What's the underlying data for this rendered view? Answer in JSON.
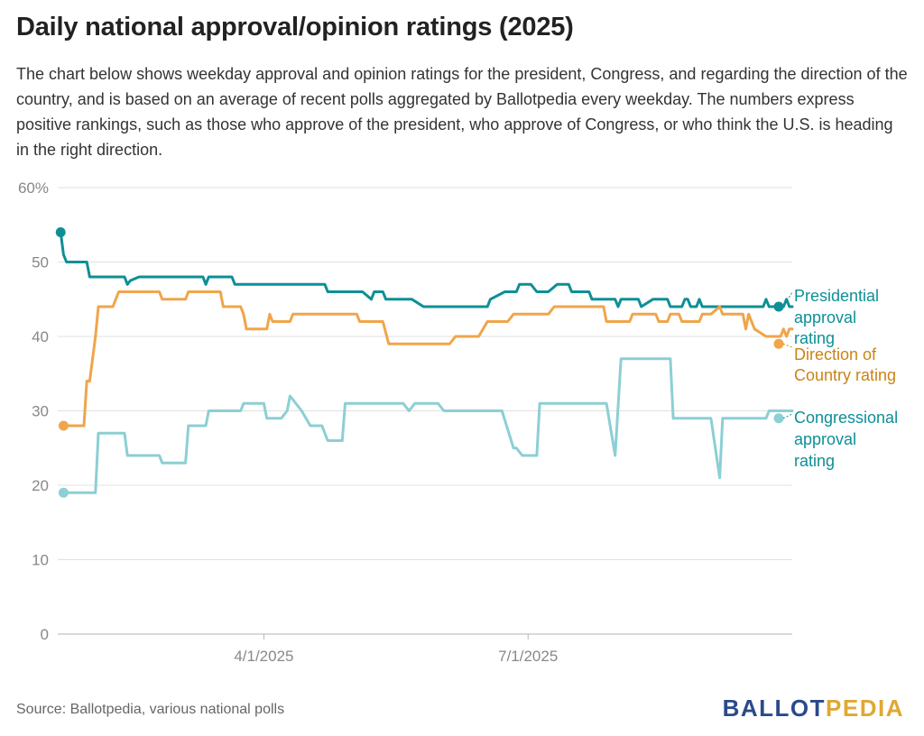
{
  "header": {
    "title": "Daily national approval/opinion ratings (2025)",
    "subtitle": "The chart below shows weekday approval and opinion ratings for the president, Congress, and regarding the direction of the country, and is based on an average of recent polls aggregated by Ballotpedia every weekday. The numbers express positive rankings, such as those who approve of the president, who approve of Congress, or who think the U.S. is heading in the right direction."
  },
  "footer": {
    "source": "Source: Ballotpedia, various national polls",
    "logo_part1": "BALLOT",
    "logo_part2": "PEDIA"
  },
  "colors": {
    "presidential": "#0e8f96",
    "direction": "#f0a54a",
    "congressional": "#8ccfd4",
    "direction_label": "#c98416",
    "grid": "#e0e0e0",
    "axis_text": "#888888"
  },
  "chart_data": {
    "type": "line",
    "x_axis": {
      "type": "date",
      "min": "2025-01-20",
      "max": "2025-09-30",
      "ticks": [
        "4/1/2025",
        "7/1/2025"
      ]
    },
    "y_axis": {
      "min": 0,
      "max": 60,
      "ticks": [
        "0",
        "10",
        "20",
        "30",
        "40",
        "50",
        "60%"
      ]
    },
    "grid": true,
    "legend": "end-labels",
    "series": [
      {
        "name": "Presidential approval rating",
        "label_lines": [
          "Presidential",
          "approval",
          "rating"
        ],
        "points": [
          [
            "2025-01-21",
            54
          ],
          [
            "2025-01-22",
            51
          ],
          [
            "2025-01-23",
            50
          ],
          [
            "2025-01-30",
            50
          ],
          [
            "2025-01-31",
            48
          ],
          [
            "2025-02-12",
            48
          ],
          [
            "2025-02-13",
            47
          ],
          [
            "2025-02-14",
            47.5
          ],
          [
            "2025-02-17",
            48
          ],
          [
            "2025-03-11",
            48
          ],
          [
            "2025-03-12",
            47
          ],
          [
            "2025-03-13",
            48
          ],
          [
            "2025-03-21",
            48
          ],
          [
            "2025-03-22",
            47
          ],
          [
            "2025-04-22",
            47
          ],
          [
            "2025-04-23",
            46
          ],
          [
            "2025-05-05",
            46
          ],
          [
            "2025-05-08",
            45
          ],
          [
            "2025-05-09",
            46
          ],
          [
            "2025-05-12",
            46
          ],
          [
            "2025-05-13",
            45
          ],
          [
            "2025-05-22",
            45
          ],
          [
            "2025-05-26",
            44
          ],
          [
            "2025-06-17",
            44
          ],
          [
            "2025-06-18",
            45
          ],
          [
            "2025-06-23",
            46
          ],
          [
            "2025-06-27",
            46
          ],
          [
            "2025-06-28",
            47
          ],
          [
            "2025-07-02",
            47
          ],
          [
            "2025-07-04",
            46
          ],
          [
            "2025-07-08",
            46
          ],
          [
            "2025-07-11",
            47
          ],
          [
            "2025-07-15",
            47
          ],
          [
            "2025-07-16",
            46
          ],
          [
            "2025-07-22",
            46
          ],
          [
            "2025-07-23",
            45
          ],
          [
            "2025-07-31",
            45
          ],
          [
            "2025-08-01",
            44
          ],
          [
            "2025-08-02",
            45
          ],
          [
            "2025-08-08",
            45
          ],
          [
            "2025-08-09",
            44
          ],
          [
            "2025-08-13",
            45
          ],
          [
            "2025-08-18",
            45
          ],
          [
            "2025-08-19",
            44
          ],
          [
            "2025-08-23",
            44
          ],
          [
            "2025-08-24",
            45
          ],
          [
            "2025-08-25",
            45
          ],
          [
            "2025-08-26",
            44
          ],
          [
            "2025-08-28",
            44
          ],
          [
            "2025-08-29",
            45
          ],
          [
            "2025-08-30",
            44
          ],
          [
            "2025-09-20",
            44
          ],
          [
            "2025-09-21",
            45
          ],
          [
            "2025-09-22",
            44
          ],
          [
            "2025-09-27",
            44
          ],
          [
            "2025-09-28",
            45
          ],
          [
            "2025-09-29",
            44
          ],
          [
            "2025-09-30",
            44
          ]
        ]
      },
      {
        "name": "Direction of Country rating",
        "label_lines": [
          "Direction of",
          "Country rating"
        ],
        "points": [
          [
            "2025-01-22",
            28
          ],
          [
            "2025-01-29",
            28
          ],
          [
            "2025-01-30",
            34
          ],
          [
            "2025-01-31",
            34
          ],
          [
            "2025-02-02",
            40
          ],
          [
            "2025-02-03",
            44
          ],
          [
            "2025-02-08",
            44
          ],
          [
            "2025-02-10",
            46
          ],
          [
            "2025-02-24",
            46
          ],
          [
            "2025-02-25",
            45
          ],
          [
            "2025-03-05",
            45
          ],
          [
            "2025-03-06",
            46
          ],
          [
            "2025-03-17",
            46
          ],
          [
            "2025-03-18",
            44
          ],
          [
            "2025-03-24",
            44
          ],
          [
            "2025-03-25",
            43
          ],
          [
            "2025-03-26",
            41
          ],
          [
            "2025-04-02",
            41
          ],
          [
            "2025-04-03",
            43
          ],
          [
            "2025-04-04",
            42
          ],
          [
            "2025-04-10",
            42
          ],
          [
            "2025-04-11",
            43
          ],
          [
            "2025-05-03",
            43
          ],
          [
            "2025-05-04",
            42
          ],
          [
            "2025-05-12",
            42
          ],
          [
            "2025-05-14",
            39
          ],
          [
            "2025-06-04",
            39
          ],
          [
            "2025-06-06",
            40
          ],
          [
            "2025-06-14",
            40
          ],
          [
            "2025-06-17",
            42
          ],
          [
            "2025-06-24",
            42
          ],
          [
            "2025-06-26",
            43
          ],
          [
            "2025-07-08",
            43
          ],
          [
            "2025-07-10",
            44
          ],
          [
            "2025-07-27",
            44
          ],
          [
            "2025-07-28",
            42
          ],
          [
            "2025-08-05",
            42
          ],
          [
            "2025-08-06",
            43
          ],
          [
            "2025-08-14",
            43
          ],
          [
            "2025-08-15",
            42
          ],
          [
            "2025-08-18",
            42
          ],
          [
            "2025-08-19",
            43
          ],
          [
            "2025-08-22",
            43
          ],
          [
            "2025-08-23",
            42
          ],
          [
            "2025-08-29",
            42
          ],
          [
            "2025-08-30",
            43
          ],
          [
            "2025-09-02",
            43
          ],
          [
            "2025-09-05",
            44
          ],
          [
            "2025-09-06",
            43
          ],
          [
            "2025-09-13",
            43
          ],
          [
            "2025-09-14",
            41
          ],
          [
            "2025-09-15",
            43
          ],
          [
            "2025-09-17",
            41
          ],
          [
            "2025-09-21",
            40
          ],
          [
            "2025-09-26",
            40
          ],
          [
            "2025-09-27",
            41
          ],
          [
            "2025-09-28",
            40
          ],
          [
            "2025-09-29",
            41
          ],
          [
            "2025-09-30",
            41
          ]
        ]
      },
      {
        "name": "Congressional approval rating",
        "label_lines": [
          "Congressional",
          "approval",
          "rating"
        ],
        "points": [
          [
            "2025-01-22",
            19
          ],
          [
            "2025-02-02",
            19
          ],
          [
            "2025-02-03",
            27
          ],
          [
            "2025-02-12",
            27
          ],
          [
            "2025-02-13",
            24
          ],
          [
            "2025-02-24",
            24
          ],
          [
            "2025-02-25",
            23
          ],
          [
            "2025-03-05",
            23
          ],
          [
            "2025-03-06",
            28
          ],
          [
            "2025-03-12",
            28
          ],
          [
            "2025-03-13",
            30
          ],
          [
            "2025-03-24",
            30
          ],
          [
            "2025-03-25",
            31
          ],
          [
            "2025-04-01",
            31
          ],
          [
            "2025-04-02",
            29
          ],
          [
            "2025-04-07",
            29
          ],
          [
            "2025-04-09",
            30
          ],
          [
            "2025-04-10",
            32
          ],
          [
            "2025-04-14",
            30
          ],
          [
            "2025-04-17",
            28
          ],
          [
            "2025-04-21",
            28
          ],
          [
            "2025-04-23",
            26
          ],
          [
            "2025-04-28",
            26
          ],
          [
            "2025-04-29",
            31
          ],
          [
            "2025-05-19",
            31
          ],
          [
            "2025-05-21",
            30
          ],
          [
            "2025-05-23",
            31
          ],
          [
            "2025-05-31",
            31
          ],
          [
            "2025-06-02",
            30
          ],
          [
            "2025-06-22",
            30
          ],
          [
            "2025-06-26",
            25
          ],
          [
            "2025-06-27",
            25
          ],
          [
            "2025-06-29",
            24
          ],
          [
            "2025-07-04",
            24
          ],
          [
            "2025-07-05",
            31
          ],
          [
            "2025-07-28",
            31
          ],
          [
            "2025-07-31",
            24
          ],
          [
            "2025-08-02",
            37
          ],
          [
            "2025-08-19",
            37
          ],
          [
            "2025-08-20",
            29
          ],
          [
            "2025-09-02",
            29
          ],
          [
            "2025-09-05",
            21
          ],
          [
            "2025-09-06",
            29
          ],
          [
            "2025-09-21",
            29
          ],
          [
            "2025-09-22",
            30
          ],
          [
            "2025-09-30",
            30
          ]
        ]
      }
    ]
  }
}
